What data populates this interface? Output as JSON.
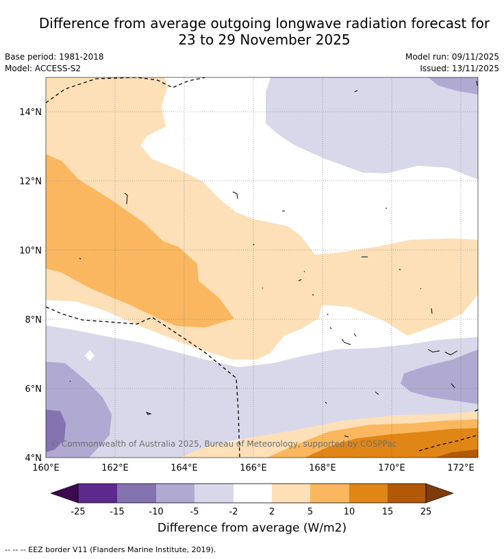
{
  "title_line1": "Difference from average outgoing longwave radiation forecast for",
  "title_line2": "23 to 29 November 2025",
  "meta": {
    "base_period": "Base period: 1981-2018",
    "model": "Model: ACCESS-S2",
    "model_run": "Model run: 09/11/2025",
    "issued": "Issued: 13/11/2025"
  },
  "map": {
    "lon_labels": [
      "160°E",
      "162°E",
      "164°E",
      "166°E",
      "168°E",
      "170°E",
      "172°E"
    ],
    "lat_labels": [
      "14°N",
      "12°N",
      "10°N",
      "8°N",
      "6°N",
      "4°N"
    ],
    "copyright": "© Commonwealth of Australia 2025, Bureau of Meteorology, supported by COSPPac"
  },
  "colorbar": {
    "title": "Difference from average (W/m2)",
    "tick_labels": [
      "-25",
      "-15",
      "-10",
      "-5",
      "-2",
      "2",
      "5",
      "10",
      "15",
      "25"
    ],
    "colors": {
      "under": "#3b0a4f",
      "c1": "#5b2a8c",
      "c2": "#8573b0",
      "c3": "#b0a9d2",
      "c4": "#d8d8ea",
      "c5": "#ffffff",
      "c6": "#fde0b8",
      "c7": "#fab75f",
      "c8": "#e08616",
      "c9": "#b35806",
      "over": "#7f3b08"
    }
  },
  "footnote": "--  --  -- EEZ border V11 (Flanders Marine Institute, 2019)."
}
